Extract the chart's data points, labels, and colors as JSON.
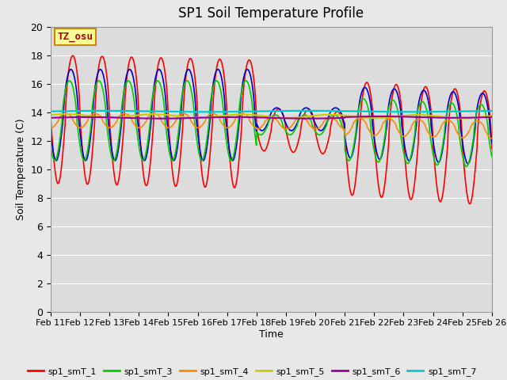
{
  "title": "SP1 Soil Temperature Profile",
  "xlabel": "Time",
  "ylabel": "Soil Temperature (C)",
  "ylim": [
    0,
    20
  ],
  "yticks": [
    0,
    2,
    4,
    6,
    8,
    10,
    12,
    14,
    16,
    18,
    20
  ],
  "x_tick_labels": [
    "Feb 11",
    "Feb 12",
    "Feb 13",
    "Feb 14",
    "Feb 15",
    "Feb 16",
    "Feb 17",
    "Feb 18",
    "Feb 19",
    "Feb 20",
    "Feb 21",
    "Feb 22",
    "Feb 23",
    "Feb 24",
    "Feb 25",
    "Feb 26"
  ],
  "series_colors": {
    "sp1_smT_1": "#ff0000",
    "sp1_smT_2": "#0000cc",
    "sp1_smT_3": "#00cc00",
    "sp1_smT_4": "#ff8800",
    "sp1_smT_5": "#cccc00",
    "sp1_smT_6": "#990099",
    "sp1_smT_7": "#00cccc"
  },
  "annotation_text": "TZ_osu",
  "annotation_bbox_facecolor": "#ffff99",
  "annotation_bbox_edgecolor": "#cc8800",
  "plot_bg_color": "#dcdcdc",
  "fig_bg_color": "#e8e8e8",
  "grid_color": "#ffffff",
  "figsize": [
    6.4,
    4.8
  ],
  "dpi": 100
}
